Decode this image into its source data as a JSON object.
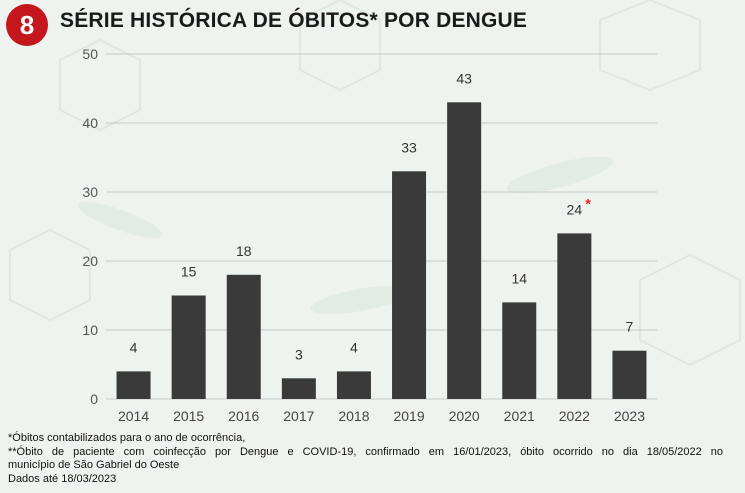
{
  "header": {
    "badge": "8",
    "title": "SÉRIE HISTÓRICA DE ÓBITOS* POR DENGUE"
  },
  "chart_data": {
    "type": "bar",
    "title": "SÉRIE HISTÓRICA DE ÓBITOS* POR DENGUE",
    "xlabel": "",
    "ylabel": "",
    "categories": [
      "2014",
      "2015",
      "2016",
      "2017",
      "2018",
      "2019",
      "2020",
      "2021",
      "2022",
      "2023"
    ],
    "values": [
      4,
      15,
      18,
      3,
      4,
      33,
      43,
      14,
      24,
      7
    ],
    "data_labels": [
      "4",
      "15",
      "18",
      "3",
      "4",
      "33",
      "43",
      "14",
      "24",
      "7"
    ],
    "annotations": [
      {
        "category": "2022",
        "text": "*",
        "color": "#e02020"
      }
    ],
    "ylim": [
      0,
      50
    ],
    "yticks": [
      0,
      10,
      20,
      30,
      40,
      50
    ],
    "grid": true,
    "bar_color": "#3a3a3a"
  },
  "notes": {
    "line1": "*Óbitos contabilizados para o ano de ocorrência,",
    "line2": "**Óbito de paciente com coinfecção por Dengue e COVID-19, confirmado em 16/01/2023, óbito ocorrido no dia 18/05/2022 no",
    "line3": "município de São Gabriel do Oeste",
    "line4": "Dados até 18/03/2023"
  },
  "colors": {
    "badge": "#c4161c",
    "background": "#eef3ef",
    "bars": "#3a3a3a",
    "gridlines": "#c8c8c8",
    "asterisk": "#e02020"
  }
}
